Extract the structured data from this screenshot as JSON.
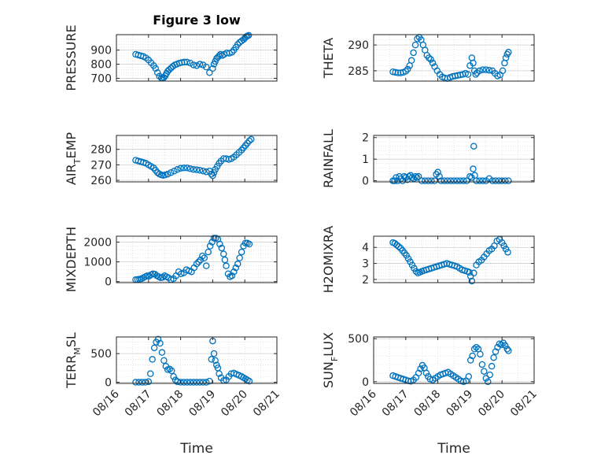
{
  "figure": {
    "title": "Figure 3 low",
    "marker_color": "#0072BD",
    "axis_color": "#262626",
    "grid_color": "#d6d6d6"
  },
  "chart_data": [
    {
      "type": "scatter",
      "id": "pressure",
      "title": "Figure 3 low",
      "xlabel": "",
      "ylabel": "PRESSURE",
      "ylabel_sub": "",
      "xlim": [
        0,
        5
      ],
      "ylim": [
        680,
        1010
      ],
      "yticks": [
        700,
        800,
        900
      ],
      "ytick_labels": [
        "700",
        "800",
        "900"
      ],
      "x": [
        0.6,
        0.68,
        0.76,
        0.84,
        0.92,
        1.0,
        1.08,
        1.16,
        1.22,
        1.28,
        1.34,
        1.4,
        1.44,
        1.48,
        1.52,
        1.56,
        1.6,
        1.64,
        1.7,
        1.76,
        1.82,
        1.88,
        1.96,
        2.04,
        2.12,
        2.2,
        2.3,
        2.4,
        2.5,
        2.6,
        2.7,
        2.8,
        2.9,
        3.0,
        3.04,
        3.08,
        3.12,
        3.16,
        3.2,
        3.24,
        3.3,
        3.36,
        3.44,
        3.52,
        3.6,
        3.66,
        3.72,
        3.78,
        3.84,
        3.9,
        3.96,
        4.0,
        4.04,
        4.08,
        4.12
      ],
      "y": [
        870,
        865,
        860,
        855,
        845,
        830,
        810,
        790,
        770,
        740,
        715,
        702,
        700,
        705,
        718,
        735,
        750,
        760,
        772,
        785,
        795,
        800,
        808,
        812,
        815,
        815,
        808,
        795,
        790,
        800,
        795,
        780,
        740,
        770,
        800,
        820,
        840,
        850,
        860,
        870,
        862,
        870,
        880,
        878,
        885,
        900,
        920,
        940,
        955,
        965,
        975,
        985,
        995,
        1000,
        1005
      ],
      "grid": true
    },
    {
      "type": "scatter",
      "id": "theta",
      "title": "",
      "xlabel": "",
      "ylabel": "THETA",
      "ylabel_sub": "",
      "xlim": [
        0,
        5
      ],
      "ylim": [
        283,
        292
      ],
      "yticks": [
        285,
        290
      ],
      "ytick_labels": [
        "285",
        "290"
      ],
      "x": [
        0.6,
        0.68,
        0.76,
        0.84,
        0.92,
        1.0,
        1.06,
        1.12,
        1.18,
        1.24,
        1.3,
        1.36,
        1.42,
        1.48,
        1.54,
        1.6,
        1.66,
        1.72,
        1.78,
        1.84,
        1.9,
        1.98,
        2.06,
        2.14,
        2.22,
        2.3,
        2.38,
        2.46,
        2.54,
        2.62,
        2.7,
        2.78,
        2.86,
        2.94,
        3.0,
        3.06,
        3.1,
        3.14,
        3.18,
        3.22,
        3.3,
        3.4,
        3.5,
        3.6,
        3.7,
        3.78,
        3.86,
        3.94,
        4.02,
        4.08,
        4.12,
        4.16,
        4.2
      ],
      "y": [
        284.8,
        284.7,
        284.6,
        284.6,
        284.7,
        284.9,
        285.3,
        286,
        287,
        288.5,
        290,
        291.2,
        291.5,
        291,
        290,
        289,
        288,
        287.5,
        287.2,
        286.5,
        285.8,
        285,
        284.3,
        283.8,
        283.6,
        283.5,
        283.7,
        283.9,
        284,
        284.1,
        284.2,
        284.3,
        284.5,
        284.3,
        286,
        287.5,
        286.5,
        285,
        284.3,
        284.6,
        285,
        285.2,
        285.2,
        285.1,
        285,
        284.5,
        284,
        284.2,
        285,
        286.5,
        287.5,
        288.2,
        288.6
      ],
      "grid": true
    },
    {
      "type": "scatter",
      "id": "air-temp",
      "title": "",
      "xlabel": "",
      "ylabel": "AIR",
      "ylabel_sub": "T",
      "ylabel_tail": "EMP",
      "xlim": [
        0,
        5
      ],
      "ylim": [
        259,
        289
      ],
      "yticks": [
        260,
        270,
        280
      ],
      "ytick_labels": [
        "260",
        "270",
        "280"
      ],
      "x": [
        0.6,
        0.68,
        0.76,
        0.84,
        0.92,
        1.0,
        1.08,
        1.16,
        1.22,
        1.28,
        1.34,
        1.4,
        1.46,
        1.52,
        1.6,
        1.7,
        1.8,
        1.9,
        2.0,
        2.1,
        2.2,
        2.3,
        2.4,
        2.5,
        2.6,
        2.7,
        2.8,
        2.9,
        2.96,
        3.0,
        3.04,
        3.08,
        3.14,
        3.2,
        3.26,
        3.34,
        3.42,
        3.5,
        3.58,
        3.66,
        3.74,
        3.82,
        3.9,
        3.96,
        4.02,
        4.08,
        4.14,
        4.2
      ],
      "y": [
        273,
        272.5,
        272,
        271.5,
        271,
        270,
        269,
        268,
        266.5,
        265,
        264,
        263.5,
        263.2,
        263.5,
        264,
        265,
        266,
        267,
        267.8,
        268,
        268,
        267.5,
        267,
        266.8,
        266.5,
        266,
        265.5,
        266,
        264,
        263,
        265,
        267,
        269,
        271,
        272.5,
        274,
        274,
        273.5,
        274,
        275,
        276.5,
        278,
        279.5,
        281,
        282.5,
        284,
        285.5,
        286.5
      ],
      "grid": true
    },
    {
      "type": "scatter",
      "id": "rainfall",
      "title": "",
      "xlabel": "",
      "ylabel": "RAINFALL",
      "ylabel_sub": "",
      "xlim": [
        0,
        5
      ],
      "ylim": [
        -0.05,
        2.1
      ],
      "yticks": [
        0,
        1,
        2
      ],
      "ytick_labels": [
        "0",
        "1",
        "2"
      ],
      "x": [
        0.6,
        0.65,
        0.7,
        0.75,
        0.8,
        0.85,
        0.9,
        0.95,
        1.0,
        1.05,
        1.1,
        1.15,
        1.2,
        1.25,
        1.3,
        1.35,
        1.4,
        1.5,
        1.6,
        1.7,
        1.8,
        1.9,
        1.95,
        2.0,
        2.05,
        2.1,
        2.2,
        2.3,
        2.4,
        2.5,
        2.6,
        2.7,
        2.8,
        2.9,
        3.0,
        3.05,
        3.1,
        3.12,
        3.15,
        3.2,
        3.3,
        3.4,
        3.5,
        3.6,
        3.7,
        3.8,
        3.9,
        4.0,
        4.1,
        4.2
      ],
      "y": [
        0,
        0,
        0.15,
        0,
        0.2,
        0.1,
        0,
        0.2,
        0.15,
        0.05,
        0.2,
        0.25,
        0.15,
        0.1,
        0.2,
        0.15,
        0.2,
        0,
        0,
        0,
        0,
        0,
        0.3,
        0.4,
        0.2,
        0,
        0,
        0,
        0,
        0,
        0,
        0,
        0,
        0,
        0.2,
        0.15,
        0.55,
        1.6,
        0.25,
        0,
        0,
        0,
        0,
        0.1,
        0,
        0,
        0,
        0,
        0,
        0
      ],
      "grid": true
    },
    {
      "type": "scatter",
      "id": "mixdepth",
      "title": "",
      "xlabel": "",
      "ylabel": "MIXDEPTH",
      "ylabel_sub": "",
      "xlim": [
        0,
        5
      ],
      "ylim": [
        -50,
        2300
      ],
      "yticks": [
        0,
        1000,
        2000
      ],
      "ytick_labels": [
        "0",
        "1000",
        "2000"
      ],
      "x": [
        0.6,
        0.66,
        0.72,
        0.78,
        0.84,
        0.9,
        0.96,
        1.02,
        1.08,
        1.14,
        1.2,
        1.26,
        1.32,
        1.38,
        1.44,
        1.5,
        1.56,
        1.62,
        1.7,
        1.78,
        1.86,
        1.94,
        2.02,
        2.1,
        2.18,
        2.26,
        2.34,
        2.42,
        2.5,
        2.56,
        2.62,
        2.68,
        2.74,
        2.8,
        2.86,
        2.92,
        2.98,
        3.04,
        3.1,
        3.16,
        3.22,
        3.28,
        3.34,
        3.38,
        3.42,
        3.48,
        3.54,
        3.6,
        3.66,
        3.72,
        3.78,
        3.84,
        3.9,
        3.96,
        4.02,
        4.08,
        4.14
      ],
      "y": [
        100,
        110,
        130,
        150,
        200,
        250,
        300,
        280,
        350,
        400,
        380,
        300,
        250,
        200,
        220,
        300,
        250,
        200,
        100,
        150,
        300,
        500,
        400,
        450,
        600,
        550,
        500,
        700,
        900,
        1000,
        1100,
        1300,
        1200,
        800,
        1500,
        1800,
        2000,
        2200,
        2200,
        2150,
        1900,
        1700,
        1400,
        1100,
        800,
        400,
        250,
        300,
        500,
        700,
        900,
        1200,
        1500,
        1800,
        1950,
        1950,
        1900
      ],
      "grid": true
    },
    {
      "type": "scatter",
      "id": "h2omixra",
      "title": "",
      "xlabel": "",
      "ylabel": "H2OMIXRA",
      "ylabel_sub": "",
      "xlim": [
        0,
        5
      ],
      "ylim": [
        1.8,
        4.7
      ],
      "yticks": [
        2,
        3,
        4
      ],
      "ytick_labels": [
        "2",
        "3",
        "4"
      ],
      "x": [
        0.6,
        0.66,
        0.72,
        0.78,
        0.84,
        0.9,
        0.96,
        1.02,
        1.08,
        1.14,
        1.2,
        1.26,
        1.32,
        1.38,
        1.44,
        1.5,
        1.56,
        1.64,
        1.72,
        1.8,
        1.88,
        1.96,
        2.04,
        2.12,
        2.2,
        2.28,
        2.36,
        2.44,
        2.52,
        2.6,
        2.68,
        2.76,
        2.84,
        2.92,
        2.98,
        3.02,
        3.06,
        3.12,
        3.2,
        3.28,
        3.36,
        3.44,
        3.52,
        3.6,
        3.68,
        3.76,
        3.84,
        3.92,
        4.0,
        4.06,
        4.12,
        4.18
      ],
      "y": [
        4.3,
        4.25,
        4.15,
        4.05,
        3.95,
        3.8,
        3.65,
        3.5,
        3.3,
        3.1,
        2.9,
        2.7,
        2.5,
        2.4,
        2.45,
        2.5,
        2.55,
        2.6,
        2.65,
        2.7,
        2.75,
        2.8,
        2.85,
        2.9,
        2.95,
        3.0,
        2.95,
        2.9,
        2.85,
        2.8,
        2.7,
        2.6,
        2.55,
        2.5,
        2.45,
        2.2,
        1.9,
        2.4,
        2.9,
        3.1,
        3.2,
        3.4,
        3.6,
        3.8,
        3.9,
        4.1,
        4.4,
        4.5,
        4.3,
        4.1,
        3.9,
        3.7
      ],
      "grid": true
    },
    {
      "type": "scatter",
      "id": "terr-msl",
      "title": "",
      "xlabel": "Time",
      "ylabel": "TERR",
      "ylabel_sub": "M",
      "ylabel_tail": "SL",
      "xlim": [
        0,
        5
      ],
      "ylim": [
        -20,
        790
      ],
      "yticks": [
        0,
        500
      ],
      "ytick_labels": [
        "0",
        "500"
      ],
      "x": [
        0.6,
        0.7,
        0.8,
        0.9,
        1.0,
        1.06,
        1.12,
        1.18,
        1.24,
        1.3,
        1.36,
        1.42,
        1.48,
        1.54,
        1.6,
        1.66,
        1.72,
        1.78,
        1.84,
        1.9,
        2.0,
        2.1,
        2.2,
        2.3,
        2.4,
        2.5,
        2.6,
        2.7,
        2.8,
        2.9,
        2.96,
        3.0,
        3.04,
        3.08,
        3.12,
        3.16,
        3.2,
        3.26,
        3.34,
        3.42,
        3.5,
        3.58,
        3.66,
        3.74,
        3.82,
        3.9,
        3.96,
        4.02,
        4.08,
        4.14
      ],
      "y": [
        0,
        0,
        0,
        0,
        10,
        150,
        400,
        600,
        700,
        750,
        680,
        520,
        380,
        280,
        220,
        230,
        200,
        100,
        40,
        10,
        0,
        0,
        0,
        0,
        0,
        0,
        0,
        0,
        0,
        20,
        400,
        720,
        500,
        380,
        300,
        250,
        150,
        80,
        30,
        40,
        100,
        150,
        160,
        140,
        120,
        100,
        80,
        60,
        40,
        20
      ],
      "grid": true,
      "xticks": [
        0,
        1,
        2,
        3,
        4,
        5
      ],
      "xtick_labels": [
        "08/16",
        "08/17",
        "08/18",
        "08/19",
        "08/20",
        "08/21"
      ]
    },
    {
      "type": "scatter",
      "id": "sun-flux",
      "title": "",
      "xlabel": "Time",
      "ylabel": "SUN",
      "ylabel_sub": "F",
      "ylabel_tail": "LUX",
      "xlim": [
        0,
        5
      ],
      "ylim": [
        -20,
        520
      ],
      "yticks": [
        0,
        500
      ],
      "ytick_labels": [
        "0",
        "500"
      ],
      "x": [
        0.6,
        0.68,
        0.76,
        0.84,
        0.92,
        1.0,
        1.08,
        1.16,
        1.24,
        1.32,
        1.4,
        1.46,
        1.52,
        1.58,
        1.64,
        1.7,
        1.76,
        1.84,
        1.92,
        2.0,
        2.08,
        2.16,
        2.24,
        2.32,
        2.4,
        2.48,
        2.56,
        2.64,
        2.72,
        2.8,
        2.88,
        2.96,
        3.02,
        3.08,
        3.14,
        3.2,
        3.26,
        3.32,
        3.38,
        3.44,
        3.5,
        3.56,
        3.62,
        3.68,
        3.74,
        3.8,
        3.86,
        3.92,
        3.98,
        4.04,
        4.1,
        4.16,
        4.2
      ],
      "y": [
        70,
        60,
        50,
        40,
        30,
        20,
        10,
        5,
        20,
        50,
        100,
        150,
        190,
        160,
        100,
        60,
        30,
        20,
        40,
        60,
        80,
        90,
        100,
        110,
        90,
        70,
        50,
        30,
        10,
        0,
        10,
        60,
        250,
        300,
        380,
        400,
        380,
        320,
        200,
        120,
        40,
        0,
        80,
        180,
        280,
        350,
        400,
        440,
        430,
        450,
        420,
        380,
        360
      ],
      "grid": true,
      "xticks": [
        0,
        1,
        2,
        3,
        4,
        5
      ],
      "xtick_labels": [
        "08/16",
        "08/17",
        "08/18",
        "08/19",
        "08/20",
        "08/21"
      ]
    }
  ]
}
